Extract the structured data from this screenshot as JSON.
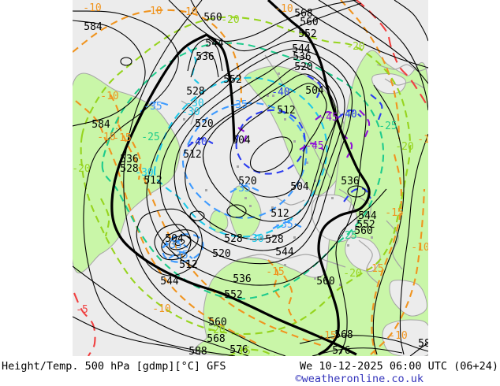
{
  "caption": {
    "left": "Height/Temp. 500 hPa [gdmp][°C] GFS",
    "right": "We 10-12-2025 06:00 UTC (06+24)",
    "credit": "©weatheronline.co.uk"
  },
  "palette": {
    "sea": "#ececec",
    "land": "#c9f6a8",
    "coast": "#a5a5a5",
    "height_contour": "#000000",
    "temp_-5": "#f04040",
    "temp_-10_-15": "#f0941f",
    "temp_-20": "#96d41e",
    "temp_-25": "#1ecb8c",
    "temp_-30": "#1fc8e8",
    "temp_-35": "#3d9aff",
    "temp_-40": "#2b3cf0",
    "temp_-45": "#9012d8",
    "credit_text": "#3434bb"
  },
  "map": {
    "labels": [
      [
        "584",
        118,
        34,
        "h"
      ],
      [
        "584",
        128,
        158,
        "h"
      ],
      [
        "560",
        270,
        22,
        "h"
      ],
      [
        "-10",
        117,
        10,
        "o"
      ],
      [
        "-10",
        194,
        14,
        "o"
      ],
      [
        "-10",
        239,
        15,
        "o"
      ],
      [
        "-10",
        360,
        11,
        "o"
      ],
      [
        "-20",
        292,
        25,
        "g"
      ],
      [
        "568",
        385,
        17,
        "h"
      ],
      [
        "560",
        392,
        28,
        "h"
      ],
      [
        "552",
        390,
        43,
        "h"
      ],
      [
        "544",
        382,
        62,
        "h"
      ],
      [
        "536",
        383,
        72,
        "h"
      ],
      [
        "520",
        385,
        85,
        "h"
      ],
      [
        "544",
        272,
        55,
        "h"
      ],
      [
        "536",
        260,
        72,
        "h"
      ],
      [
        "528",
        248,
        116,
        "h"
      ],
      [
        "552",
        295,
        101,
        "h"
      ],
      [
        "-10",
        139,
        122,
        "o"
      ],
      [
        "-30",
        247,
        131,
        "c"
      ],
      [
        "-30",
        242,
        142,
        "c"
      ],
      [
        "-35",
        194,
        135,
        "lb"
      ],
      [
        "-35",
        302,
        133,
        "lb"
      ],
      [
        "-40",
        356,
        117,
        "b"
      ],
      [
        "504",
        399,
        115,
        "h"
      ],
      [
        "512",
        363,
        140,
        "h"
      ],
      [
        "-40",
        441,
        145,
        "b"
      ],
      [
        "-45",
        417,
        149,
        "p"
      ],
      [
        "-45",
        399,
        185,
        "p"
      ],
      [
        "520",
        259,
        157,
        "h"
      ],
      [
        "-10",
        135,
        174,
        "o"
      ],
      [
        "-15",
        155,
        175,
        "o"
      ],
      [
        "-25",
        191,
        174,
        "t"
      ],
      [
        "-40",
        251,
        180,
        "b"
      ],
      [
        "504",
        306,
        178,
        "h"
      ],
      [
        "512",
        244,
        196,
        "h"
      ],
      [
        "536",
        164,
        202,
        "h"
      ],
      [
        "528",
        164,
        214,
        "h"
      ],
      [
        "-30",
        183,
        219,
        "c"
      ],
      [
        "-20",
        103,
        214,
        "g"
      ],
      [
        "512",
        194,
        229,
        "h"
      ],
      [
        "520",
        314,
        230,
        "h"
      ],
      [
        "536",
        444,
        230,
        "h"
      ],
      [
        "504",
        380,
        237,
        "h"
      ],
      [
        "-35",
        306,
        239,
        "lb"
      ],
      [
        "-20",
        451,
        59,
        "g"
      ],
      [
        "-25",
        492,
        160,
        "t"
      ],
      [
        "-20",
        513,
        186,
        "g"
      ],
      [
        "-15",
        541,
        177,
        "o"
      ],
      [
        "504",
        221,
        303,
        "h"
      ],
      [
        "-35",
        219,
        311,
        "lb"
      ],
      [
        "-35",
        227,
        324,
        "lb"
      ],
      [
        "512",
        239,
        336,
        "h"
      ],
      [
        "520",
        281,
        322,
        "h"
      ],
      [
        "528",
        296,
        303,
        "h"
      ],
      [
        "528",
        348,
        304,
        "h"
      ],
      [
        "-30",
        323,
        303,
        "c"
      ],
      [
        "512",
        355,
        271,
        "h"
      ],
      [
        "-35",
        360,
        285,
        "lb"
      ],
      [
        "544",
        361,
        320,
        "h"
      ],
      [
        "536",
        307,
        354,
        "h"
      ],
      [
        "552",
        296,
        374,
        "h"
      ],
      [
        "544",
        215,
        357,
        "h"
      ],
      [
        "560",
        413,
        357,
        "h"
      ],
      [
        "544",
        466,
        274,
        "h"
      ],
      [
        "552",
        464,
        285,
        "h"
      ],
      [
        "560",
        461,
        293,
        "h"
      ],
      [
        "-15",
        500,
        270,
        "o"
      ],
      [
        "-25",
        441,
        299,
        "t"
      ],
      [
        "-15",
        475,
        341,
        "o"
      ],
      [
        "-15",
        349,
        345,
        "o"
      ],
      [
        "-20",
        447,
        347,
        "g"
      ],
      [
        "-10",
        533,
        314,
        "o"
      ],
      [
        "560",
        276,
        409,
        "h"
      ],
      [
        "-10",
        205,
        392,
        "o"
      ],
      [
        "-5",
        104,
        393,
        "r"
      ],
      [
        "568",
        274,
        430,
        "h"
      ],
      [
        "576",
        303,
        444,
        "h"
      ],
      [
        "588",
        251,
        446,
        "h"
      ],
      [
        "-20",
        274,
        419,
        "g"
      ],
      [
        "15",
        310,
        446,
        "g"
      ],
      [
        "-15",
        415,
        426,
        "o"
      ],
      [
        "568",
        436,
        425,
        "h"
      ],
      [
        "576",
        433,
        445,
        "h"
      ],
      [
        "-10",
        505,
        426,
        "o"
      ],
      [
        "58",
        538,
        436,
        "h"
      ]
    ]
  }
}
